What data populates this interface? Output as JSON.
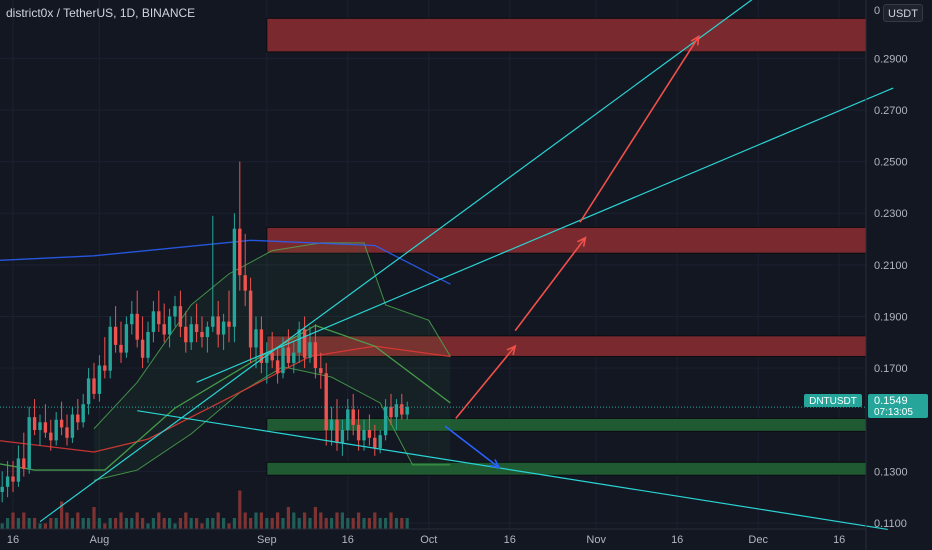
{
  "header": {
    "symbol_pair": "district0x / TetherUS",
    "interval": "1D",
    "exchange": "BINANCE",
    "currency_button": "USDT",
    "top_tick": "0"
  },
  "price_label": {
    "ticker": "DNTUSDT",
    "price": "0.1549",
    "countdown": "07:13:05"
  },
  "colors": {
    "background": "#131722",
    "up": "#26a69a",
    "down": "#ef5350",
    "resistance_zone": "#7a2a2e",
    "support_zone": "#1f5a33",
    "trendline": "#2ad4d4",
    "arrow": "#f0504a",
    "ema_blue": "#2962ff",
    "ema_red": "#e53935",
    "ema_green": "#4caf50",
    "bollinger": "#4caf50"
  },
  "chart_data": {
    "type": "candlestick",
    "symbol": "DNTUSDT",
    "y_axis": {
      "ticks": [
        "0.2900",
        "0.2700",
        "0.2500",
        "0.2300",
        "0.2100",
        "0.1900",
        "0.1700",
        "0.1300",
        "0.1100"
      ],
      "values": [
        0.29,
        0.27,
        0.25,
        0.23,
        0.21,
        0.19,
        0.17,
        0.13,
        0.11
      ],
      "range": [
        0.1065,
        0.3095
      ]
    },
    "x_axis": {
      "ticks": [
        "16",
        "Aug",
        "Sep",
        "16",
        "Oct",
        "16",
        "Nov",
        "16",
        "Dec",
        "16"
      ],
      "dates": [
        "2021-07-16",
        "2021-08-01",
        "2021-09-01",
        "2021-09-16",
        "2021-10-01",
        "2021-10-16",
        "2021-11-01",
        "2021-11-16",
        "2021-12-01",
        "2021-12-16"
      ]
    },
    "candles": [
      [
        0.141,
        0.151,
        0.119,
        0.123
      ],
      [
        0.123,
        0.127,
        0.118,
        0.12
      ],
      [
        0.12,
        0.13,
        0.117,
        0.126
      ],
      [
        0.126,
        0.13,
        0.118,
        0.12
      ],
      [
        0.12,
        0.124,
        0.115,
        0.118
      ],
      [
        0.118,
        0.126,
        0.112,
        0.116
      ],
      [
        0.116,
        0.122,
        0.111,
        0.114
      ],
      [
        0.114,
        0.12,
        0.109,
        0.117
      ],
      [
        0.117,
        0.124,
        0.112,
        0.115
      ],
      [
        0.115,
        0.12,
        0.11,
        0.112
      ],
      [
        0.112,
        0.118,
        0.108,
        0.114
      ],
      [
        0.114,
        0.121,
        0.111,
        0.118
      ],
      [
        0.118,
        0.127,
        0.116,
        0.122
      ],
      [
        0.122,
        0.13,
        0.118,
        0.124
      ],
      [
        0.124,
        0.134,
        0.12,
        0.128
      ],
      [
        0.128,
        0.134,
        0.122,
        0.126
      ],
      [
        0.126,
        0.14,
        0.124,
        0.135
      ],
      [
        0.135,
        0.145,
        0.128,
        0.131
      ],
      [
        0.131,
        0.155,
        0.129,
        0.151
      ],
      [
        0.151,
        0.158,
        0.144,
        0.146
      ],
      [
        0.146,
        0.152,
        0.14,
        0.149
      ],
      [
        0.149,
        0.156,
        0.143,
        0.145
      ],
      [
        0.145,
        0.15,
        0.138,
        0.142
      ],
      [
        0.142,
        0.153,
        0.14,
        0.15
      ],
      [
        0.15,
        0.157,
        0.144,
        0.147
      ],
      [
        0.147,
        0.152,
        0.14,
        0.143
      ],
      [
        0.143,
        0.155,
        0.141,
        0.152
      ],
      [
        0.152,
        0.158,
        0.146,
        0.149
      ],
      [
        0.149,
        0.16,
        0.147,
        0.156
      ],
      [
        0.156,
        0.17,
        0.152,
        0.166
      ],
      [
        0.166,
        0.172,
        0.158,
        0.16
      ],
      [
        0.16,
        0.175,
        0.157,
        0.171
      ],
      [
        0.171,
        0.182,
        0.166,
        0.169
      ],
      [
        0.169,
        0.19,
        0.166,
        0.186
      ],
      [
        0.186,
        0.194,
        0.176,
        0.179
      ],
      [
        0.179,
        0.188,
        0.172,
        0.176
      ],
      [
        0.176,
        0.19,
        0.174,
        0.187
      ],
      [
        0.187,
        0.196,
        0.183,
        0.191
      ],
      [
        0.191,
        0.2,
        0.178,
        0.181
      ],
      [
        0.181,
        0.19,
        0.17,
        0.174
      ],
      [
        0.174,
        0.188,
        0.172,
        0.184
      ],
      [
        0.184,
        0.196,
        0.18,
        0.192
      ],
      [
        0.192,
        0.2,
        0.184,
        0.187
      ],
      [
        0.187,
        0.195,
        0.18,
        0.183
      ],
      [
        0.183,
        0.193,
        0.178,
        0.19
      ],
      [
        0.19,
        0.198,
        0.186,
        0.194
      ],
      [
        0.194,
        0.2,
        0.182,
        0.186
      ],
      [
        0.186,
        0.192,
        0.176,
        0.18
      ],
      [
        0.18,
        0.19,
        0.177,
        0.187
      ],
      [
        0.187,
        0.195,
        0.18,
        0.184
      ],
      [
        0.184,
        0.19,
        0.178,
        0.182
      ],
      [
        0.182,
        0.188,
        0.176,
        0.186
      ],
      [
        0.186,
        0.229,
        0.184,
        0.19
      ],
      [
        0.19,
        0.196,
        0.178,
        0.183
      ],
      [
        0.183,
        0.191,
        0.177,
        0.188
      ],
      [
        0.188,
        0.2,
        0.18,
        0.186
      ],
      [
        0.186,
        0.23,
        0.18,
        0.224
      ],
      [
        0.224,
        0.25,
        0.2,
        0.206
      ],
      [
        0.206,
        0.222,
        0.194,
        0.2
      ],
      [
        0.2,
        0.205,
        0.172,
        0.178
      ],
      [
        0.178,
        0.19,
        0.17,
        0.185
      ],
      [
        0.185,
        0.19,
        0.168,
        0.172
      ],
      [
        0.172,
        0.18,
        0.164,
        0.176
      ],
      [
        0.176,
        0.184,
        0.17,
        0.173
      ],
      [
        0.173,
        0.178,
        0.164,
        0.168
      ],
      [
        0.168,
        0.182,
        0.166,
        0.178
      ],
      [
        0.178,
        0.185,
        0.17,
        0.172
      ],
      [
        0.172,
        0.18,
        0.168,
        0.176
      ],
      [
        0.176,
        0.188,
        0.172,
        0.185
      ],
      [
        0.185,
        0.19,
        0.17,
        0.174
      ],
      [
        0.174,
        0.186,
        0.172,
        0.18
      ],
      [
        0.18,
        0.187,
        0.166,
        0.17
      ],
      [
        0.17,
        0.176,
        0.162,
        0.168
      ],
      [
        0.168,
        0.172,
        0.14,
        0.146
      ],
      [
        0.146,
        0.155,
        0.14,
        0.15
      ],
      [
        0.15,
        0.158,
        0.138,
        0.141
      ],
      [
        0.141,
        0.15,
        0.136,
        0.146
      ],
      [
        0.146,
        0.158,
        0.142,
        0.154
      ],
      [
        0.154,
        0.16,
        0.144,
        0.148
      ],
      [
        0.148,
        0.154,
        0.138,
        0.142
      ],
      [
        0.142,
        0.15,
        0.138,
        0.146
      ],
      [
        0.146,
        0.152,
        0.14,
        0.143
      ],
      [
        0.143,
        0.148,
        0.136,
        0.139
      ],
      [
        0.139,
        0.146,
        0.137,
        0.144
      ],
      [
        0.144,
        0.158,
        0.142,
        0.155
      ],
      [
        0.155,
        0.16,
        0.148,
        0.151
      ],
      [
        0.151,
        0.158,
        0.146,
        0.156
      ],
      [
        0.156,
        0.16,
        0.15,
        0.152
      ],
      [
        0.152,
        0.157,
        0.15,
        0.1549
      ]
    ],
    "volumes": [
      3,
      1,
      2,
      1,
      2,
      3,
      2,
      2,
      4,
      1,
      2,
      3,
      2,
      1,
      2,
      3,
      2,
      3,
      2,
      2,
      1,
      1,
      2,
      2,
      5,
      3,
      2,
      3,
      2,
      2,
      4,
      2,
      1,
      2,
      2,
      3,
      2,
      2,
      3,
      2,
      1,
      2,
      3,
      2,
      2,
      1,
      2,
      3,
      2,
      2,
      1,
      2,
      2,
      3,
      2,
      1,
      2,
      7,
      3,
      2,
      3,
      3,
      2,
      2,
      3,
      2,
      4,
      3,
      2,
      3,
      2,
      4,
      3,
      2,
      2,
      3,
      3,
      2,
      2,
      3,
      2,
      2,
      3,
      2,
      2,
      3,
      2,
      2,
      2
    ],
    "moving_averages": [
      {
        "color": "blue",
        "points": [
          [
            "2021-07-01",
            0.2105
          ],
          [
            "2021-07-31",
            0.2135
          ],
          [
            "2021-08-29",
            0.2195
          ],
          [
            "2021-09-21",
            0.2175
          ],
          [
            "2021-10-05",
            0.2025
          ]
        ]
      },
      {
        "color": "red",
        "points": [
          [
            "2021-07-01",
            0.1545
          ],
          [
            "2021-07-11",
            0.1425
          ],
          [
            "2021-07-31",
            0.1375
          ],
          [
            "2021-08-10",
            0.1425
          ],
          [
            "2021-08-25",
            0.1585
          ],
          [
            "2021-09-09",
            0.1745
          ],
          [
            "2021-09-21",
            0.1785
          ],
          [
            "2021-10-05",
            0.1745
          ]
        ]
      },
      {
        "color": "green",
        "points": [
          [
            "2021-07-01",
            0.1375
          ],
          [
            "2021-07-20",
            0.1305
          ],
          [
            "2021-08-02",
            0.1305
          ],
          [
            "2021-08-15",
            0.1545
          ],
          [
            "2021-08-31",
            0.1745
          ],
          [
            "2021-09-10",
            0.1865
          ],
          [
            "2021-09-21",
            0.1785
          ],
          [
            "2021-10-05",
            0.1565
          ]
        ]
      }
    ],
    "bollinger_bands": {
      "upper": [
        [
          "2021-07-31",
          0.1465
        ],
        [
          "2021-08-08",
          0.1645
        ],
        [
          "2021-08-18",
          0.1945
        ],
        [
          "2021-08-25",
          0.2065
        ],
        [
          "2021-09-02",
          0.2155
        ],
        [
          "2021-09-11",
          0.2185
        ],
        [
          "2021-09-19",
          0.2185
        ],
        [
          "2021-09-23",
          0.1945
        ],
        [
          "2021-10-01",
          0.1885
        ],
        [
          "2021-10-05",
          0.1745
        ]
      ],
      "lower": [
        [
          "2021-07-31",
          0.1265
        ],
        [
          "2021-08-08",
          0.1305
        ],
        [
          "2021-08-18",
          0.1445
        ],
        [
          "2021-08-27",
          0.1605
        ],
        [
          "2021-09-04",
          0.1705
        ],
        [
          "2021-09-13",
          0.1665
        ],
        [
          "2021-09-22",
          0.1565
        ],
        [
          "2021-09-28",
          0.1325
        ],
        [
          "2021-10-05",
          0.1325
        ]
      ]
    },
    "zones": [
      {
        "kind": "resistance",
        "from": "2021-09-01",
        "low": 0.2925,
        "high": 0.3055
      },
      {
        "kind": "resistance",
        "from": "2021-09-01",
        "low": 0.2145,
        "high": 0.2245
      },
      {
        "kind": "resistance",
        "from": "2021-09-01",
        "low": 0.1745,
        "high": 0.1825
      },
      {
        "kind": "support",
        "from": "2021-09-01",
        "low": 0.1455,
        "high": 0.1505
      },
      {
        "kind": "support",
        "from": "2021-09-01",
        "low": 0.1285,
        "high": 0.1335
      }
    ],
    "trendlines": [
      {
        "from": [
          "2021-07-21",
          0.1105
        ],
        "to": [
          "2021-12-01",
          0.3145
        ]
      },
      {
        "from": [
          "2021-08-19",
          0.1645
        ],
        "to": [
          "2021-12-26",
          0.2785
        ]
      },
      {
        "from": [
          "2021-08-08",
          0.1535
        ],
        "to": [
          "2021-12-25",
          0.1075
        ]
      }
    ],
    "arrows": [
      {
        "color": "red",
        "from": [
          "2021-10-06",
          0.1505
        ],
        "to": [
          "2021-10-17",
          0.1785
        ]
      },
      {
        "color": "red",
        "from": [
          "2021-10-17",
          0.1845
        ],
        "to": [
          "2021-10-30",
          0.2205
        ]
      },
      {
        "color": "red",
        "from": [
          "2021-10-29",
          0.2265
        ],
        "to": [
          "2021-11-20",
          0.2985
        ]
      },
      {
        "color": "blue",
        "from": [
          "2021-10-04",
          0.1475
        ],
        "to": [
          "2021-10-14",
          0.1315
        ]
      }
    ]
  }
}
